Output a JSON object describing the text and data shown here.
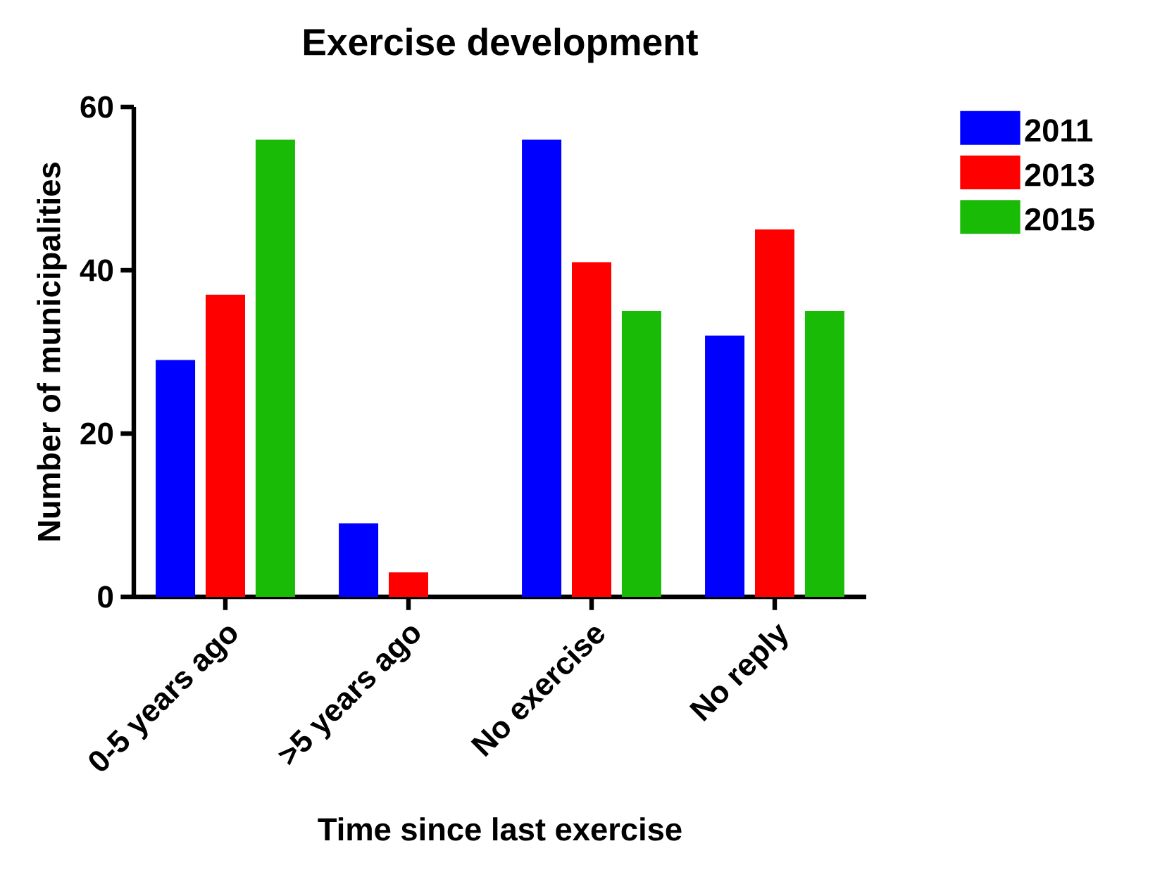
{
  "chart_data": {
    "type": "bar",
    "title": "Exercise development",
    "xlabel": "Time since last exercise",
    "ylabel": "Number of municipalities",
    "categories": [
      "0-5 years ago",
      ">5 years ago",
      "No exercise",
      "No reply"
    ],
    "series": [
      {
        "name": "2011",
        "color": "#0000ff",
        "values": [
          29,
          9,
          56,
          32
        ]
      },
      {
        "name": "2013",
        "color": "#ff0000",
        "values": [
          37,
          3,
          41,
          45
        ]
      },
      {
        "name": "2015",
        "color": "#1abb06",
        "values": [
          56,
          0,
          35,
          35
        ]
      }
    ],
    "ylim": [
      0,
      60
    ],
    "yticks": [
      0,
      20,
      40,
      60
    ],
    "grid": false,
    "legend": "top right"
  }
}
